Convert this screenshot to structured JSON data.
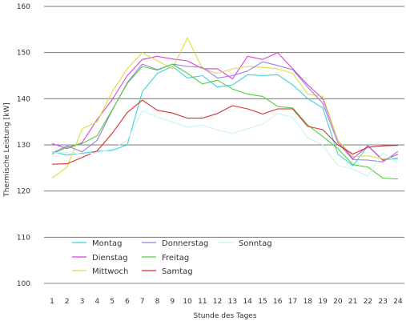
{
  "chart_data": {
    "type": "line",
    "xlabel": "Stunde des Tages",
    "ylabel": "Thermische Leistung [kW]",
    "x": [
      1,
      2,
      3,
      4,
      5,
      6,
      7,
      8,
      9,
      10,
      11,
      12,
      13,
      14,
      15,
      16,
      17,
      18,
      19,
      20,
      21,
      22,
      23,
      24
    ],
    "x_ticks": [
      "1",
      "2",
      "3",
      "4",
      "5",
      "6",
      "7",
      "8",
      "9",
      "10",
      "11",
      "12",
      "13",
      "14",
      "15",
      "16",
      "17",
      "18",
      "19",
      "20",
      "21",
      "22",
      "23",
      "24"
    ],
    "ylim": [
      100,
      160
    ],
    "y_ticks": [
      "100",
      "110",
      "120",
      "130",
      "140",
      "150",
      "160"
    ],
    "grid": "horizontal",
    "legend_position": "bottom-left-inside",
    "series": [
      {
        "name": "Montag",
        "color": "#3fd0e0",
        "values": [
          128.5,
          127.8,
          128.2,
          128.6,
          128.8,
          130,
          141.5,
          145.5,
          147,
          144.5,
          145,
          142.5,
          143,
          145.2,
          145,
          145.2,
          143,
          140,
          138,
          128,
          125.5,
          129.8,
          126.8,
          127
        ]
      },
      {
        "name": "Dienstag",
        "color": "#e03fe0",
        "values": [
          130.3,
          129.2,
          130.5,
          135.5,
          139.8,
          145,
          148.5,
          149.2,
          148.6,
          148.2,
          146.5,
          146.5,
          144.3,
          149.2,
          148.5,
          150,
          146.5,
          143,
          140,
          131,
          127,
          129.8,
          126.6,
          128
        ]
      },
      {
        "name": "Mittwoch",
        "color": "#d8e040",
        "values": [
          122.8,
          125.2,
          133.5,
          135,
          141.5,
          146.5,
          150,
          148.2,
          146.5,
          153.2,
          146.5,
          145.5,
          146.5,
          147,
          146.8,
          146.5,
          145.5,
          141,
          140.5,
          131,
          127.5,
          127.6,
          127,
          127.2
        ]
      },
      {
        "name": "Donnerstag",
        "color": "#9a7ee0",
        "values": [
          128.2,
          129.8,
          128.5,
          131,
          137.5,
          143.5,
          147.5,
          146.3,
          147.5,
          147,
          146.8,
          144.5,
          145,
          146,
          148,
          147.2,
          146.3,
          142.5,
          139,
          130.5,
          126.8,
          126.7,
          126.3,
          128.6
        ]
      },
      {
        "name": "Freitag",
        "color": "#50d040",
        "values": [
          128,
          129.5,
          130.3,
          132,
          137.6,
          143.3,
          147,
          146.2,
          147.5,
          145.5,
          143.2,
          144,
          142.1,
          141,
          140.5,
          138.3,
          138,
          134.3,
          131.8,
          129.2,
          125.7,
          125.2,
          122.8,
          122.6
        ]
      },
      {
        "name": "Samtag",
        "color": "#d83030",
        "values": [
          125.8,
          125.9,
          127.3,
          128.7,
          132.5,
          137,
          139.7,
          137.5,
          136.9,
          135.8,
          135.8,
          136.8,
          138.5,
          137.8,
          136.7,
          137.8,
          137.8,
          134,
          133.3,
          130,
          128,
          129.5,
          129.8,
          129.9
        ]
      },
      {
        "name": "Sonntag",
        "color": "#c9f3f3",
        "values": [
          128.3,
          128.3,
          128,
          128.3,
          129.1,
          131,
          137.4,
          136,
          135,
          133.8,
          134.3,
          133.2,
          132.5,
          133.5,
          134.5,
          136.8,
          136,
          131.5,
          130,
          125.5,
          124.8,
          123.2,
          128.3,
          126
        ]
      }
    ]
  }
}
